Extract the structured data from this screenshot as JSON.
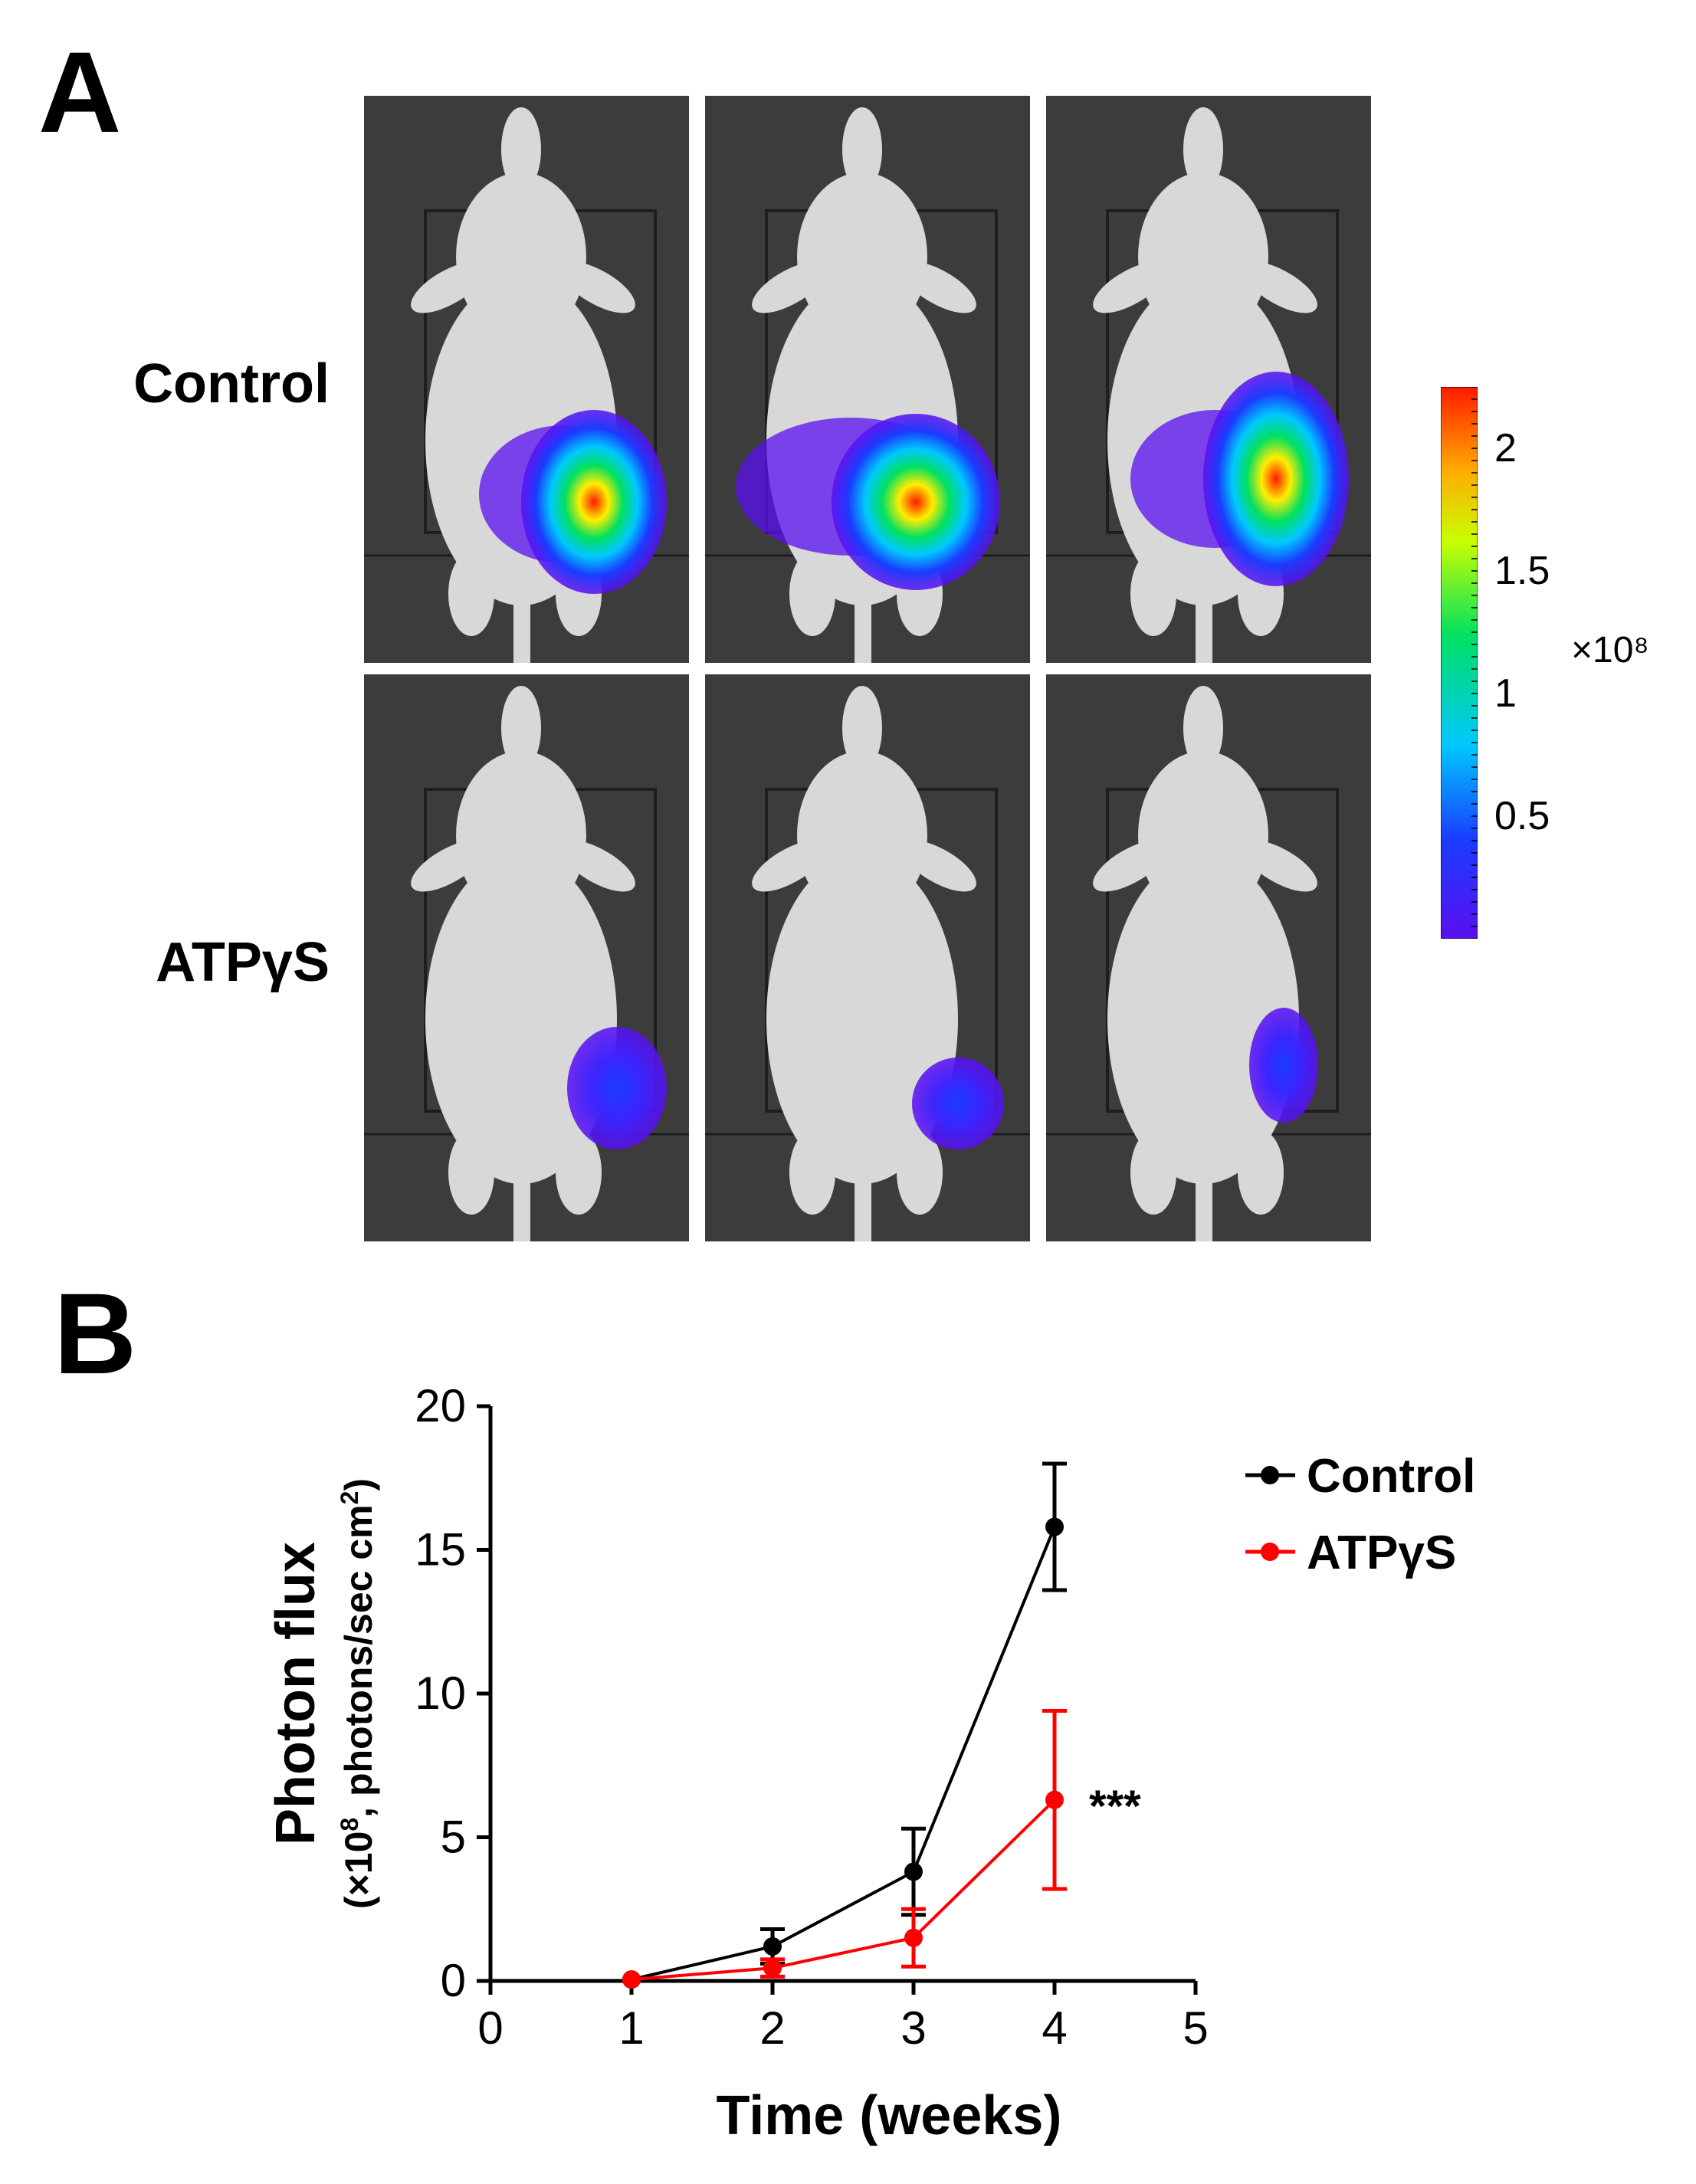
{
  "panel_a": {
    "letter": "A",
    "rows": [
      {
        "label": "Control"
      },
      {
        "label": "ATPγS"
      }
    ],
    "colorbar": {
      "ticks": [
        "2",
        "1.5",
        "1",
        "0.5"
      ],
      "tick_values": [
        2.0,
        1.5,
        1.0,
        0.5
      ],
      "range": [
        0,
        2.25
      ],
      "unit": "×10⁸"
    },
    "colors": {
      "low": "#5a0ff0",
      "mid": "#00c8ff",
      "high": "#ff1a00",
      "background": "#3c3c3c"
    }
  },
  "panel_b": {
    "letter": "B"
  },
  "chart_data": {
    "type": "line",
    "title": "",
    "xlabel": "Time (weeks)",
    "ylabel": "Photon flux",
    "ylabel_sub_prefix": "(×10",
    "ylabel_sub_sup": "8",
    "ylabel_sub_mid": ", photons/sec cm",
    "ylabel_sub_sup2": "2",
    "ylabel_sub_suffix": ")",
    "xlim": [
      0,
      5
    ],
    "ylim": [
      0,
      20
    ],
    "xticks": [
      0,
      1,
      2,
      3,
      4,
      5
    ],
    "yticks": [
      0,
      5,
      10,
      15,
      20
    ],
    "x": [
      1,
      2,
      3,
      4
    ],
    "series": [
      {
        "name": "Control",
        "color": "#000000",
        "values": [
          0.05,
          1.2,
          3.8,
          15.8
        ],
        "errors": [
          0.1,
          0.6,
          1.5,
          2.2
        ]
      },
      {
        "name": "ATPγS",
        "color": "#ff0000",
        "values": [
          0.05,
          0.45,
          1.5,
          6.3
        ],
        "errors": [
          0.1,
          0.3,
          1.0,
          3.1
        ]
      }
    ],
    "annotation": "***",
    "legend_position": "top-right"
  }
}
